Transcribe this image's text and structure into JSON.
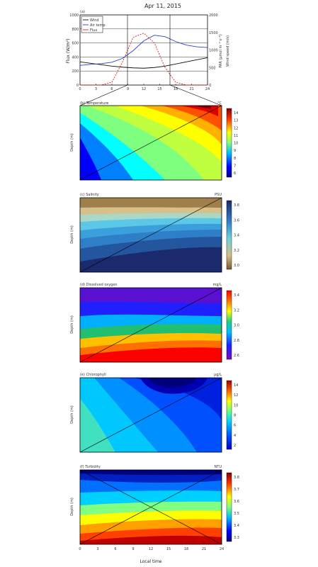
{
  "figure": {
    "title": "Apr 11, 2015",
    "xlabel": "Local time"
  },
  "panel_a": {
    "tag": "(a)",
    "left_ylabel": "Flux (W/m²)",
    "right_ylabel_1": "PAR (µmol m⁻² s⁻¹)",
    "right_ylabel_2": "Wind speed (m/s)",
    "legend": [
      "Wind",
      "Air temp",
      "Flux"
    ]
  },
  "panels": [
    {
      "key": "b",
      "title": "(b) Temperature",
      "unit": "°C",
      "colorbar_ticks": [
        "14",
        "13",
        "12",
        "11",
        "10",
        "9",
        "8",
        "7",
        "6"
      ]
    },
    {
      "key": "c",
      "title": "(c) Salinity",
      "unit": "PSU",
      "colorbar_ticks": [
        "3.8",
        "3.6",
        "3.4",
        "3.2",
        "3.0"
      ]
    },
    {
      "key": "d",
      "title": "(d) Dissolved oxygen",
      "unit": "mg/L",
      "colorbar_ticks": [
        "3.4",
        "3.2",
        "3.0",
        "2.8",
        "2.6"
      ]
    },
    {
      "key": "e",
      "title": "(e) Chlorophyll",
      "unit": "µg/L",
      "colorbar_ticks": [
        "14",
        "12",
        "10",
        "8",
        "6",
        "4",
        "2"
      ]
    },
    {
      "key": "f",
      "title": "(f) Turbidity",
      "unit": "NTU",
      "colorbar_ticks": [
        "3.8",
        "3.7",
        "3.6",
        "3.5",
        "3.4",
        "3.3"
      ]
    }
  ],
  "depth_label": "Depth (m)",
  "chart_data": {
    "type": "line",
    "x": [
      0,
      2,
      4,
      6,
      8,
      10,
      12,
      14,
      16,
      18,
      20,
      22,
      24
    ],
    "xlim": [
      0,
      24
    ],
    "ylim_left": [
      0,
      1000
    ],
    "ylim_right": [
      0,
      2000
    ],
    "left_ticks": [
      0,
      200,
      400,
      600,
      800,
      1000
    ],
    "right_ticks": [
      0,
      500,
      1000,
      1500,
      2000
    ],
    "x_ticks": [
      0,
      3,
      6,
      9,
      12,
      15,
      18,
      21,
      24
    ],
    "series": [
      {
        "name": "Wind",
        "axis": "left",
        "color": "#111111",
        "values": [
          330,
          310,
          290,
          270,
          255,
          245,
          240,
          250,
          270,
          300,
          330,
          360,
          390
        ]
      },
      {
        "name": "Air temp",
        "axis": "right",
        "color": "#2a3fd6",
        "values": [
          560,
          590,
          610,
          650,
          760,
          980,
          1260,
          1420,
          1380,
          1240,
          1140,
          1090,
          1070
        ]
      },
      {
        "name": "Flux",
        "axis": "left",
        "color": "#e0201a",
        "values": [
          0,
          0,
          0,
          40,
          330,
          680,
          740,
          600,
          250,
          40,
          0,
          0,
          0
        ]
      }
    ],
    "contour_panels": 5,
    "depth_ticks": [
      0,
      1,
      2,
      3,
      4,
      5
    ]
  },
  "colors": {
    "jet": [
      "#00007f",
      "#0000ff",
      "#007fff",
      "#00ffff",
      "#7fff7f",
      "#ffff00",
      "#ff7f00",
      "#ff0000",
      "#7f0000"
    ],
    "brbg": [
      "#1a2a6c",
      "#2456a0",
      "#3b8fd0",
      "#5cc7e6",
      "#7ed0c0",
      "#c8b98a",
      "#a0804a",
      "#7a5a2e"
    ]
  }
}
